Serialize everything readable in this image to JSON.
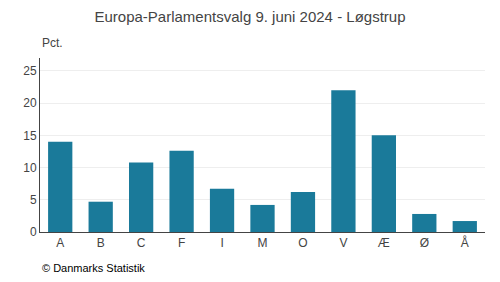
{
  "chart_data": {
    "type": "bar",
    "title": "Europa-Parlamentsvalg 9. juni 2024 - Løgstrup",
    "categories": [
      "A",
      "B",
      "C",
      "F",
      "I",
      "M",
      "O",
      "V",
      "Æ",
      "Ø",
      "Å"
    ],
    "values": [
      14.0,
      4.7,
      10.8,
      12.6,
      6.7,
      4.2,
      6.2,
      22.0,
      15.0,
      2.8,
      1.7
    ],
    "color": "#1a7a9a",
    "ylabel": "Pct.",
    "annotations": [
      "© Danmarks Statistik"
    ],
    "ylim": [
      0,
      27
    ],
    "yticks": [
      0,
      5,
      10,
      15,
      20,
      25
    ],
    "grid": true
  }
}
